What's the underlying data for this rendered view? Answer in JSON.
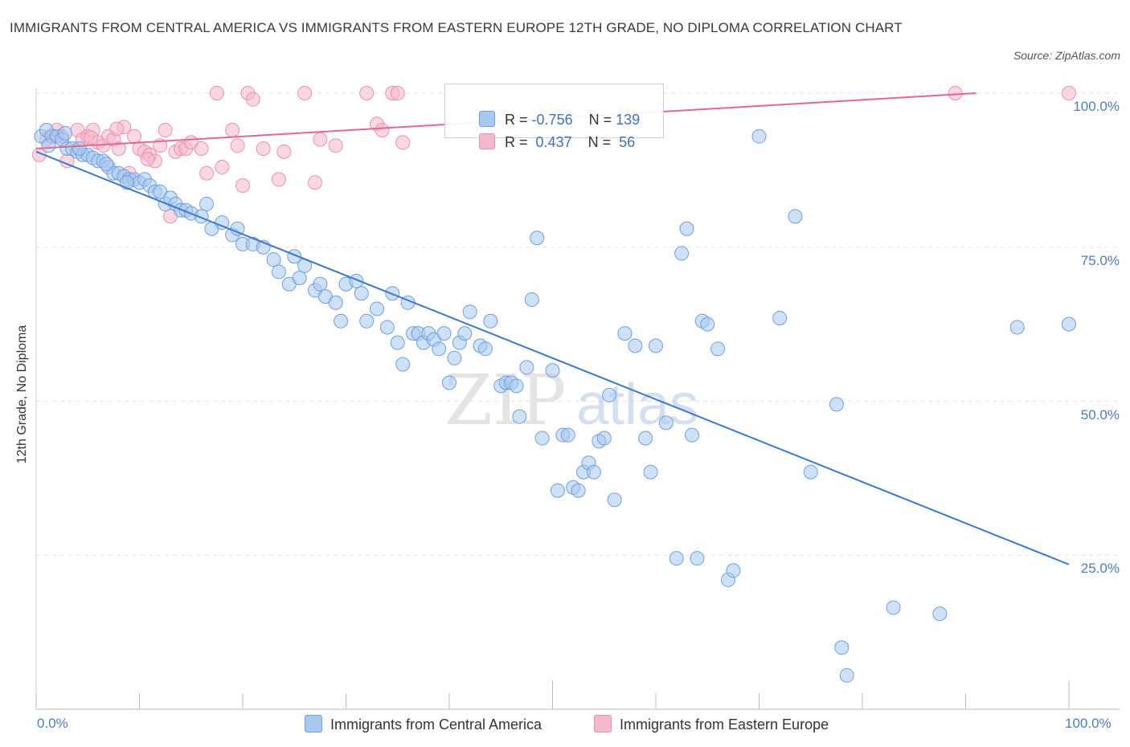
{
  "title": "IMMIGRANTS FROM CENTRAL AMERICA VS IMMIGRANTS FROM EASTERN EUROPE 12TH GRADE, NO DIPLOMA CORRELATION CHART",
  "source": "Source: ZipAtlas.com",
  "watermark": {
    "zip": "ZIP",
    "atlas": "atlas"
  },
  "legend": {
    "rows": [
      {
        "r_label": "R =",
        "r_value": "-0.756",
        "n_label": "N =",
        "n_value": "139"
      },
      {
        "r_label": "R =",
        "r_value": " 0.437",
        "n_label": "N =",
        "n_value": " 56"
      }
    ]
  },
  "bottom_legend": {
    "series1": "Immigrants from Central America",
    "series2": "Immigrants from Eastern Europe"
  },
  "colors": {
    "blue_fill": "#a8c8f0",
    "blue_stroke": "#6f9fe0",
    "blue_line": "#3a78d4",
    "pink_fill": "#f5b8cb",
    "pink_stroke": "#ec8fae",
    "pink_line": "#e3688f",
    "tick_text": "#4a7cc7"
  },
  "chart_data": {
    "type": "scatter",
    "title": "IMMIGRANTS FROM CENTRAL AMERICA VS IMMIGRANTS FROM EASTERN EUROPE 12TH GRADE, NO DIPLOMA CORRELATION CHART",
    "xlabel": "",
    "ylabel": "12th Grade, No Diploma",
    "xlim": [
      0,
      100
    ],
    "ylim": [
      0,
      100
    ],
    "x_tick_labels": [
      "0.0%",
      "100.0%"
    ],
    "y_tick_labels": [
      "25.0%",
      "50.0%",
      "75.0%",
      "100.0%"
    ],
    "y_ticks": [
      25,
      50,
      75,
      100
    ],
    "series": [
      {
        "name": "Immigrants from Central America",
        "R": -0.756,
        "N": 139,
        "trend": {
          "x": [
            0,
            100
          ],
          "y": [
            90.5,
            23.5
          ]
        },
        "points": [
          [
            0.5,
            93
          ],
          [
            1,
            94
          ],
          [
            1.5,
            93
          ],
          [
            2,
            93
          ],
          [
            2.5,
            92.5
          ],
          [
            3,
            91
          ],
          [
            3.5,
            91
          ],
          [
            4,
            90.5
          ],
          [
            4.5,
            90
          ],
          [
            5,
            90
          ],
          [
            5.5,
            89.5
          ],
          [
            6,
            89
          ],
          [
            6.5,
            89
          ],
          [
            7,
            88
          ],
          [
            7.5,
            87
          ],
          [
            8,
            87
          ],
          [
            8.5,
            86.5
          ],
          [
            9,
            86
          ],
          [
            9.5,
            86
          ],
          [
            10,
            85.5
          ],
          [
            10.5,
            86
          ],
          [
            11,
            85
          ],
          [
            11.5,
            84
          ],
          [
            12,
            84
          ],
          [
            12.5,
            82
          ],
          [
            13,
            83
          ],
          [
            13.5,
            82
          ],
          [
            14,
            81
          ],
          [
            14.5,
            81
          ],
          [
            15,
            80.5
          ],
          [
            16,
            80
          ],
          [
            16.5,
            82
          ],
          [
            17,
            78
          ],
          [
            18,
            79
          ],
          [
            19,
            77
          ],
          [
            19.5,
            78
          ],
          [
            20,
            75.5
          ],
          [
            21,
            75.5
          ],
          [
            22,
            75
          ],
          [
            23,
            73
          ],
          [
            23.5,
            71
          ],
          [
            24.5,
            69
          ],
          [
            25,
            73.5
          ],
          [
            25.5,
            70
          ],
          [
            26,
            72
          ],
          [
            27,
            68
          ],
          [
            27.5,
            69
          ],
          [
            28,
            67
          ],
          [
            29,
            66
          ],
          [
            29.5,
            63
          ],
          [
            30,
            69
          ],
          [
            31,
            69.5
          ],
          [
            31.5,
            67.5
          ],
          [
            32,
            63
          ],
          [
            33,
            65
          ],
          [
            34,
            62
          ],
          [
            34.5,
            67.5
          ],
          [
            35,
            59.5
          ],
          [
            35.5,
            56
          ],
          [
            36,
            66
          ],
          [
            36.5,
            61
          ],
          [
            37,
            61
          ],
          [
            37.5,
            59.5
          ],
          [
            38,
            61
          ],
          [
            38.5,
            60
          ],
          [
            39,
            58.5
          ],
          [
            39.5,
            61
          ],
          [
            40,
            53
          ],
          [
            40.5,
            57
          ],
          [
            41,
            59.5
          ],
          [
            41.5,
            61
          ],
          [
            42,
            64.5
          ],
          [
            43,
            59
          ],
          [
            43.5,
            58.5
          ],
          [
            44,
            63
          ],
          [
            45,
            52.5
          ],
          [
            45.5,
            53
          ],
          [
            46,
            53
          ],
          [
            46.5,
            52.5
          ],
          [
            46.8,
            47.5
          ],
          [
            47.5,
            55.5
          ],
          [
            48,
            66.5
          ],
          [
            48.5,
            76.5
          ],
          [
            49,
            44
          ],
          [
            50,
            55
          ],
          [
            50.5,
            35.5
          ],
          [
            51,
            44.5
          ],
          [
            51.5,
            44.5
          ],
          [
            52,
            36
          ],
          [
            52.5,
            35.5
          ],
          [
            53,
            38.5
          ],
          [
            53.5,
            40
          ],
          [
            54,
            38.5
          ],
          [
            54.5,
            43.5
          ],
          [
            55,
            44
          ],
          [
            55.5,
            51
          ],
          [
            56,
            34
          ],
          [
            57,
            61
          ],
          [
            58,
            59
          ],
          [
            59,
            44
          ],
          [
            59.5,
            38.5
          ],
          [
            60,
            59
          ],
          [
            61,
            46.5
          ],
          [
            62,
            24.5
          ],
          [
            62.5,
            74
          ],
          [
            63,
            78
          ],
          [
            63.5,
            44.5
          ],
          [
            64,
            24.5
          ],
          [
            64.5,
            63
          ],
          [
            65,
            62.5
          ],
          [
            66,
            58.5
          ],
          [
            67,
            21
          ],
          [
            67.5,
            22.5
          ],
          [
            70,
            93
          ],
          [
            72,
            63.5
          ],
          [
            73.5,
            80
          ],
          [
            75,
            38.5
          ],
          [
            77.5,
            49.5
          ],
          [
            78,
            10
          ],
          [
            78.5,
            5.5
          ],
          [
            83,
            16.5
          ],
          [
            87.5,
            15.5
          ],
          [
            95,
            62
          ],
          [
            100,
            62.5
          ],
          [
            1.2,
            91.5
          ],
          [
            2.8,
            93.5
          ],
          [
            4.2,
            91
          ],
          [
            6.8,
            88.5
          ],
          [
            8.8,
            85.5
          ]
        ]
      },
      {
        "name": "Immigrants from Eastern Europe",
        "R": 0.437,
        "N": 56,
        "trend": {
          "x": [
            0,
            91
          ],
          "y": [
            91,
            100
          ]
        },
        "points": [
          [
            0.3,
            90
          ],
          [
            1,
            92.5
          ],
          [
            1.5,
            93
          ],
          [
            2,
            94
          ],
          [
            2.5,
            93
          ],
          [
            3,
            89
          ],
          [
            4,
            94
          ],
          [
            4.5,
            92.5
          ],
          [
            5,
            93
          ],
          [
            5.5,
            94
          ],
          [
            6,
            92
          ],
          [
            6.5,
            91.5
          ],
          [
            7,
            93
          ],
          [
            7.5,
            92.5
          ],
          [
            8,
            91
          ],
          [
            8.5,
            94.5
          ],
          [
            9,
            87
          ],
          [
            9.5,
            93
          ],
          [
            10,
            91
          ],
          [
            10.5,
            90.5
          ],
          [
            11,
            90
          ],
          [
            11.5,
            89
          ],
          [
            12,
            91.5
          ],
          [
            12.5,
            94
          ],
          [
            13,
            80
          ],
          [
            13.5,
            90.5
          ],
          [
            14,
            91
          ],
          [
            14.5,
            91
          ],
          [
            15,
            92
          ],
          [
            16,
            91
          ],
          [
            16.5,
            87
          ],
          [
            17.5,
            100
          ],
          [
            18,
            88
          ],
          [
            19,
            94
          ],
          [
            19.5,
            91.5
          ],
          [
            20,
            85
          ],
          [
            20.5,
            100
          ],
          [
            21,
            99
          ],
          [
            22,
            91
          ],
          [
            23.5,
            86
          ],
          [
            24,
            90.5
          ],
          [
            26,
            100
          ],
          [
            27,
            85.5
          ],
          [
            27.5,
            92.5
          ],
          [
            29,
            91.5
          ],
          [
            32,
            100
          ],
          [
            33,
            95
          ],
          [
            33.5,
            94
          ],
          [
            34.5,
            100
          ],
          [
            35,
            100
          ],
          [
            35.5,
            92
          ],
          [
            89,
            100
          ],
          [
            100,
            100
          ],
          [
            5.3,
            92.8
          ],
          [
            10.8,
            89.3
          ],
          [
            7.8,
            94.2
          ]
        ]
      }
    ]
  }
}
